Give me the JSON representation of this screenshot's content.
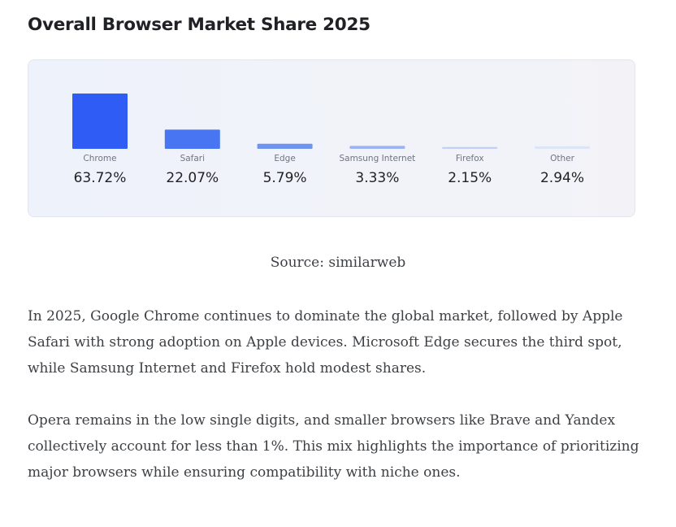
{
  "page": {
    "title": "Overall Browser Market Share 2025",
    "source": "Source: similarweb",
    "paragraphs": [
      "In 2025, Google Chrome continues to dominate the global market, followed by Apple Safari with strong adoption on Apple devices. Microsoft Edge secures the third spot, while Samsung Internet and Firefox hold modest shares.",
      "Opera remains in the low single digits, and smaller browsers like Brave and Yandex collectively account for less than 1%. This mix highlights the importance of prioritizing major browsers while ensuring compatibility with niche ones."
    ]
  },
  "chart_data": {
    "type": "bar",
    "categories": [
      "Chrome",
      "Safari",
      "Edge",
      "Samsung Internet",
      "Firefox",
      "Other"
    ],
    "values": [
      63.72,
      22.07,
      5.79,
      3.33,
      2.15,
      2.94
    ],
    "value_labels": [
      "63.72%",
      "22.07%",
      "5.79%",
      "3.33%",
      "2.15%",
      "2.94%"
    ],
    "colors": [
      "#2f5cf5",
      "#4876f2",
      "#6f93f1",
      "#9bb3f1",
      "#c1d0f3",
      "#dce4f6"
    ],
    "title": "",
    "xlabel": "",
    "ylabel": "",
    "grid": false,
    "legend": "none"
  }
}
